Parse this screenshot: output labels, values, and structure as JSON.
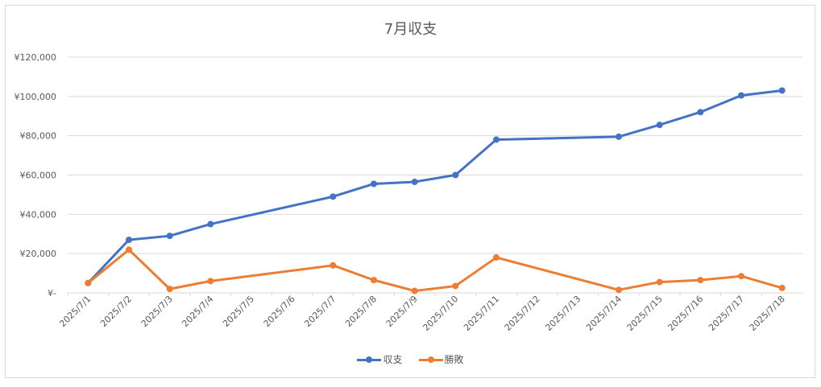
{
  "chart_data": {
    "type": "line",
    "title": "7月収支",
    "categories": [
      "2025/7/1",
      "2025/7/2",
      "2025/7/3",
      "2025/7/4",
      "2025/7/5",
      "2025/7/6",
      "2025/7/7",
      "2025/7/8",
      "2025/7/9",
      "2025/7/10",
      "2025/7/11",
      "2025/7/12",
      "2025/7/13",
      "2025/7/14",
      "2025/7/15",
      "2025/7/16",
      "2025/7/17",
      "2025/7/18"
    ],
    "y_tick_values": [
      0,
      20000,
      40000,
      60000,
      80000,
      100000,
      120000
    ],
    "y_tick_labels": [
      "¥-",
      "¥20,000",
      "¥40,000",
      "¥60,000",
      "¥80,000",
      "¥100,000",
      "¥120,000"
    ],
    "ylim": [
      0,
      120000
    ],
    "grid": true,
    "legend_position": "bottom",
    "series": [
      {
        "name": "収支",
        "color": "#4472c4",
        "points": [
          {
            "x": "2025/7/1",
            "y": 5000
          },
          {
            "x": "2025/7/2",
            "y": 27000
          },
          {
            "x": "2025/7/3",
            "y": 29000
          },
          {
            "x": "2025/7/4",
            "y": 35000
          },
          {
            "x": "2025/7/7",
            "y": 49000
          },
          {
            "x": "2025/7/8",
            "y": 55500
          },
          {
            "x": "2025/7/9",
            "y": 56500
          },
          {
            "x": "2025/7/10",
            "y": 60000
          },
          {
            "x": "2025/7/11",
            "y": 78000
          },
          {
            "x": "2025/7/14",
            "y": 79500
          },
          {
            "x": "2025/7/15",
            "y": 85500
          },
          {
            "x": "2025/7/16",
            "y": 92000
          },
          {
            "x": "2025/7/17",
            "y": 100500
          },
          {
            "x": "2025/7/18",
            "y": 103000
          }
        ]
      },
      {
        "name": "勝敗",
        "color": "#ed7d31",
        "points": [
          {
            "x": "2025/7/1",
            "y": 5000
          },
          {
            "x": "2025/7/2",
            "y": 22000
          },
          {
            "x": "2025/7/3",
            "y": 2000
          },
          {
            "x": "2025/7/4",
            "y": 6000
          },
          {
            "x": "2025/7/7",
            "y": 14000
          },
          {
            "x": "2025/7/8",
            "y": 6500
          },
          {
            "x": "2025/7/9",
            "y": 1000
          },
          {
            "x": "2025/7/10",
            "y": 3500
          },
          {
            "x": "2025/7/11",
            "y": 18000
          },
          {
            "x": "2025/7/14",
            "y": 1500
          },
          {
            "x": "2025/7/15",
            "y": 5500
          },
          {
            "x": "2025/7/16",
            "y": 6500
          },
          {
            "x": "2025/7/17",
            "y": 8500
          },
          {
            "x": "2025/7/18",
            "y": 2500
          }
        ]
      }
    ]
  }
}
